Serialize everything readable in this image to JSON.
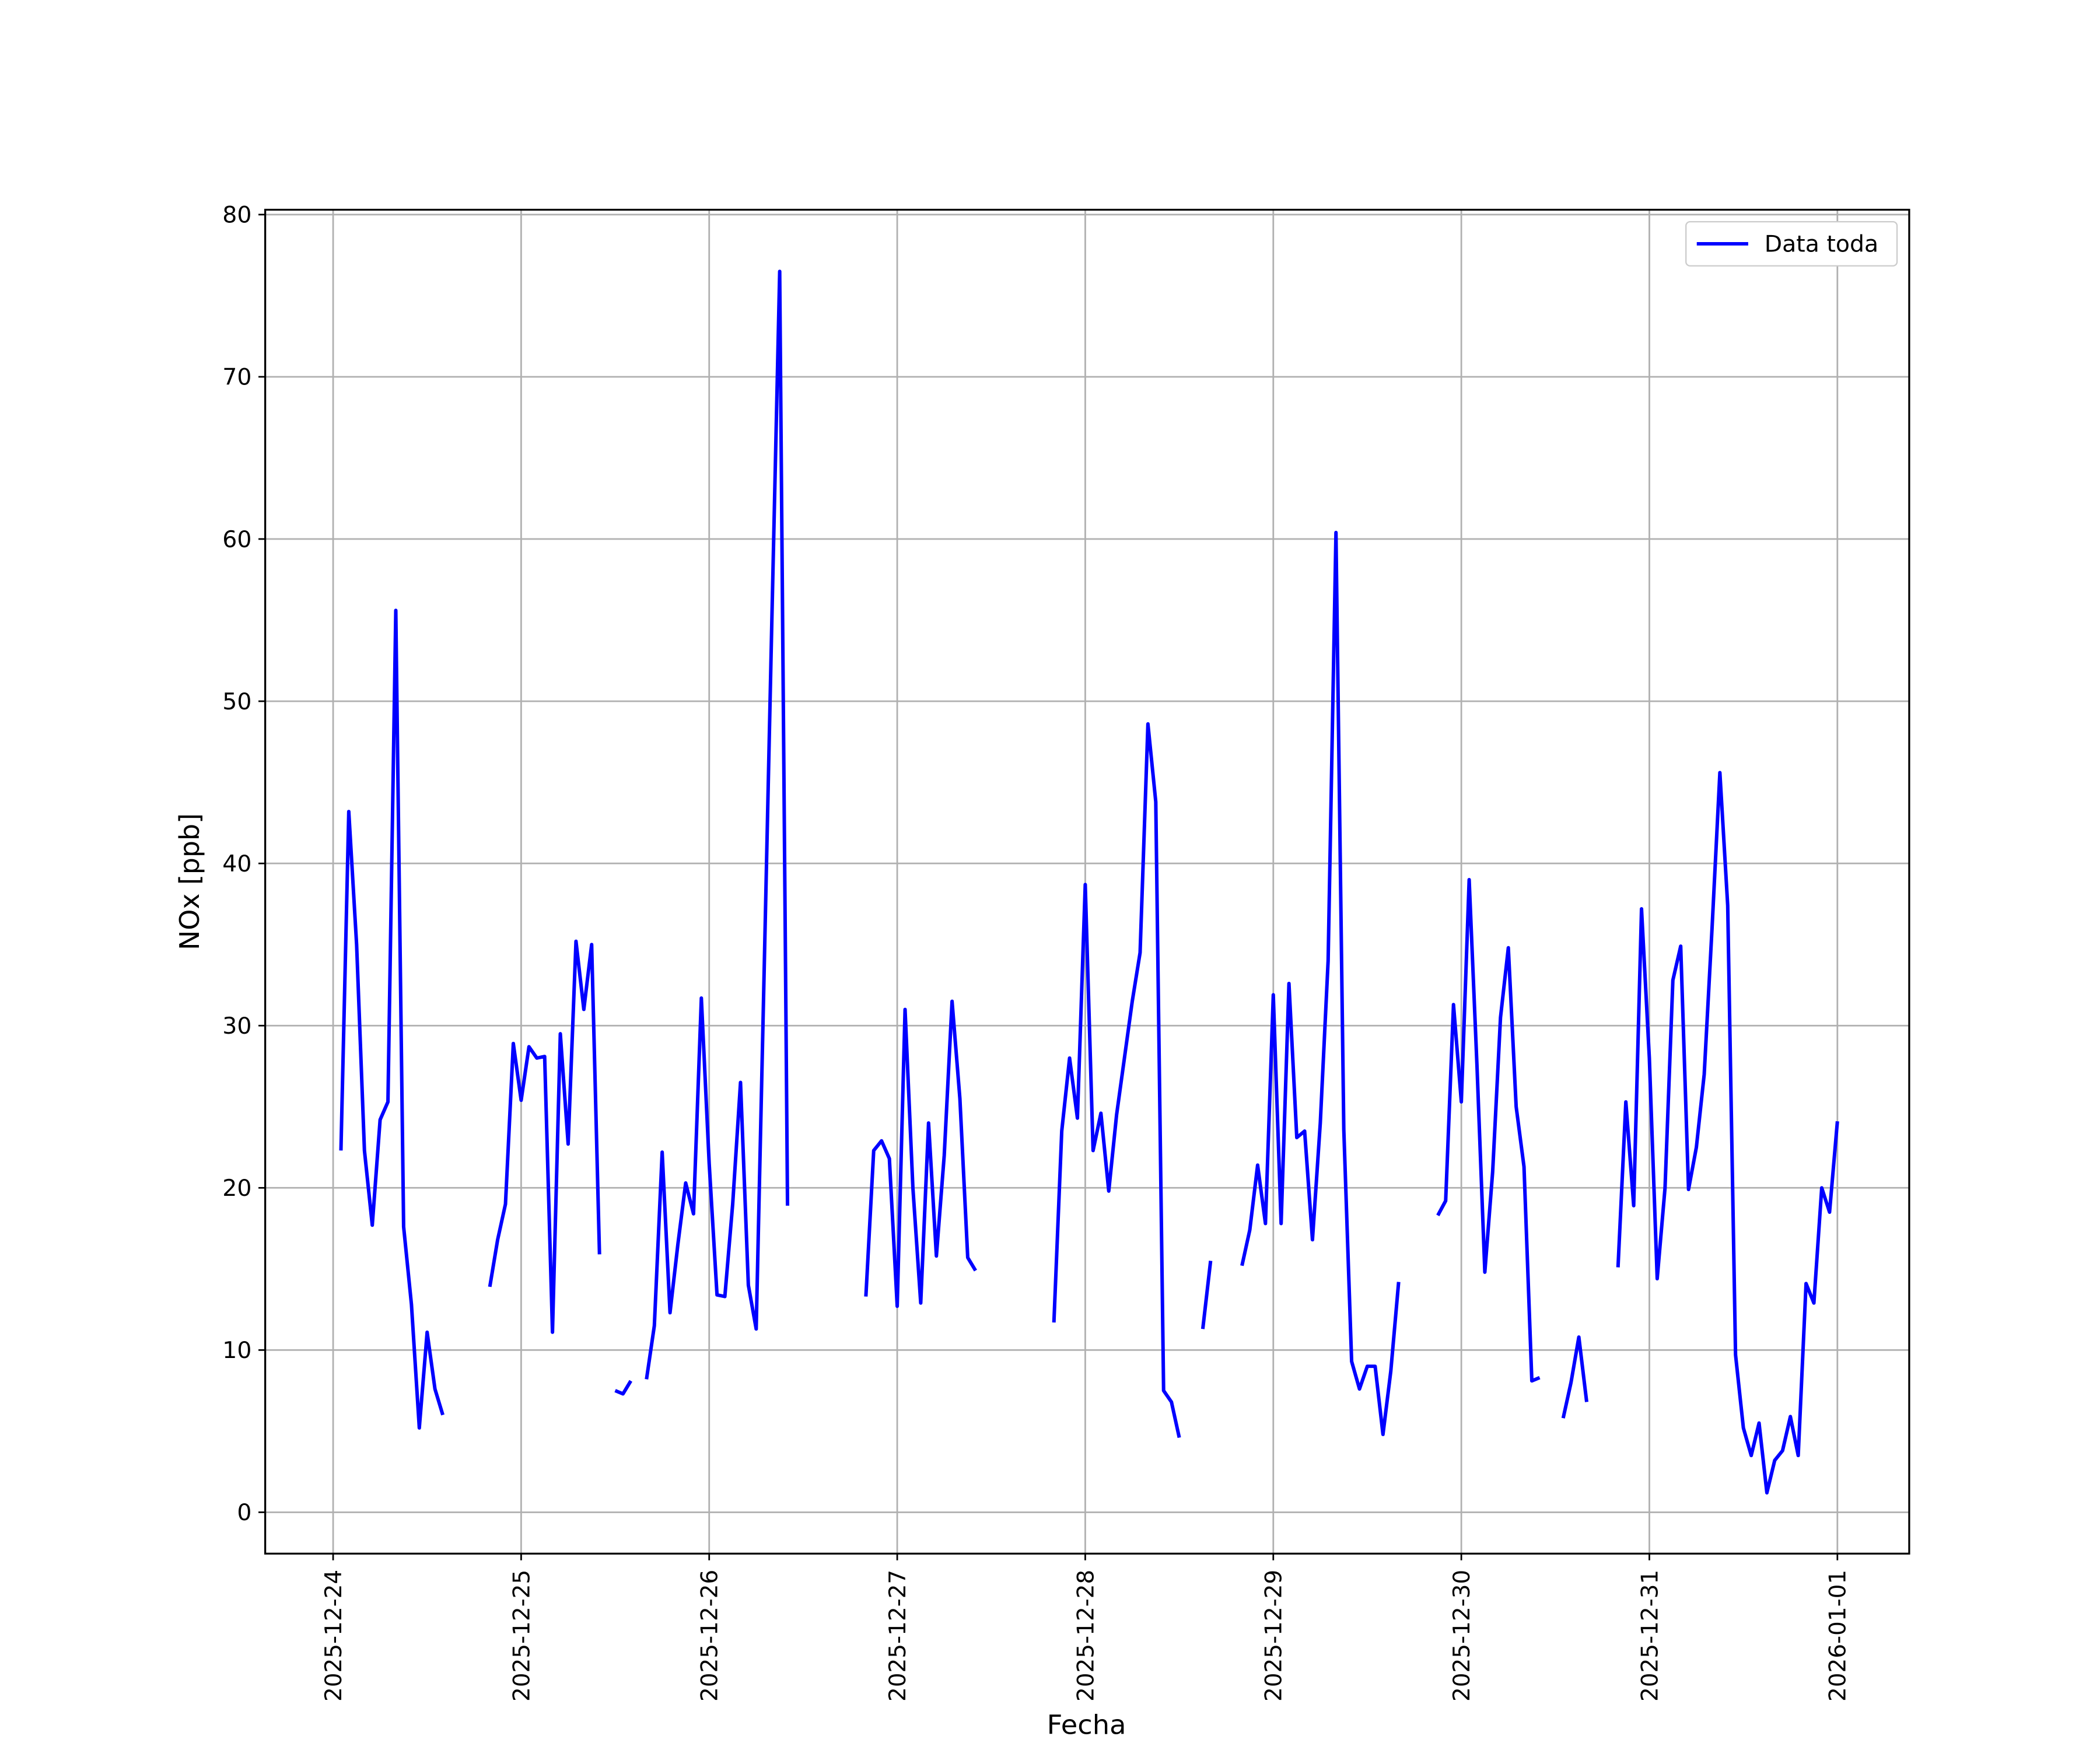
{
  "chart_data": {
    "type": "line",
    "x_label": "Fecha",
    "y_label": "NOx [ppb]",
    "x": [
      "2025-12-24 01:00",
      "2025-12-24 02:00",
      "2025-12-24 03:00",
      "2025-12-24 04:00",
      "2025-12-24 05:00",
      "2025-12-24 06:00",
      "2025-12-24 07:00",
      "2025-12-24 08:00",
      "2025-12-24 09:00",
      "2025-12-24 10:00",
      "2025-12-24 11:00",
      "2025-12-24 12:00",
      "2025-12-24 13:00",
      "2025-12-24 14:00",
      "2025-12-24 15:00",
      "2025-12-24 20:00",
      "2025-12-24 21:00",
      "2025-12-24 22:00",
      "2025-12-24 23:00",
      "2025-12-25 00:00",
      "2025-12-25 01:00",
      "2025-12-25 02:00",
      "2025-12-25 03:00",
      "2025-12-25 04:00",
      "2025-12-25 05:00",
      "2025-12-25 06:00",
      "2025-12-25 07:00",
      "2025-12-25 08:00",
      "2025-12-25 09:00",
      "2025-12-25 10:00",
      "2025-12-25 11:00",
      "2025-12-25 12:00",
      "2025-12-25 13:00",
      "2025-12-25 14:00",
      "2025-12-25 15:00",
      "2025-12-25 16:00",
      "2025-12-25 17:00",
      "2025-12-25 18:00",
      "2025-12-25 19:00",
      "2025-12-25 20:00",
      "2025-12-25 21:00",
      "2025-12-25 22:00",
      "2025-12-25 23:00",
      "2025-12-26 00:00",
      "2025-12-26 01:00",
      "2025-12-26 02:00",
      "2025-12-26 03:00",
      "2025-12-26 04:00",
      "2025-12-26 05:00",
      "2025-12-26 06:00",
      "2025-12-26 07:00",
      "2025-12-26 08:00",
      "2025-12-26 09:00",
      "2025-12-26 10:00",
      "2025-12-26 11:00",
      "2025-12-26 20:00",
      "2025-12-26 21:00",
      "2025-12-26 22:00",
      "2025-12-26 23:00",
      "2025-12-27 00:00",
      "2025-12-27 01:00",
      "2025-12-27 02:00",
      "2025-12-27 03:00",
      "2025-12-27 04:00",
      "2025-12-27 05:00",
      "2025-12-27 06:00",
      "2025-12-27 07:00",
      "2025-12-27 08:00",
      "2025-12-27 09:00",
      "2025-12-27 10:00",
      "2025-12-27 11:00",
      "2025-12-27 20:00",
      "2025-12-27 21:00",
      "2025-12-27 22:00",
      "2025-12-27 23:00",
      "2025-12-28 00:00",
      "2025-12-28 01:00",
      "2025-12-28 02:00",
      "2025-12-28 03:00",
      "2025-12-28 04:00",
      "2025-12-28 05:00",
      "2025-12-28 06:00",
      "2025-12-28 07:00",
      "2025-12-28 08:00",
      "2025-12-28 09:00",
      "2025-12-28 10:00",
      "2025-12-28 11:00",
      "2025-12-28 12:00",
      "2025-12-28 13:00",
      "2025-12-28 15:00",
      "2025-12-28 16:00",
      "2025-12-28 17:00",
      "2025-12-28 20:00",
      "2025-12-28 21:00",
      "2025-12-28 22:00",
      "2025-12-28 23:00",
      "2025-12-29 00:00",
      "2025-12-29 01:00",
      "2025-12-29 02:00",
      "2025-12-29 03:00",
      "2025-12-29 04:00",
      "2025-12-29 05:00",
      "2025-12-29 06:00",
      "2025-12-29 07:00",
      "2025-12-29 08:00",
      "2025-12-29 09:00",
      "2025-12-29 10:00",
      "2025-12-29 11:00",
      "2025-12-29 12:00",
      "2025-12-29 13:00",
      "2025-12-29 14:00",
      "2025-12-29 15:00",
      "2025-12-29 16:00",
      "2025-12-29 17:00",
      "2025-12-29 21:00",
      "2025-12-29 22:00",
      "2025-12-29 23:00",
      "2025-12-30 00:00",
      "2025-12-30 01:00",
      "2025-12-30 02:00",
      "2025-12-30 03:00",
      "2025-12-30 04:00",
      "2025-12-30 05:00",
      "2025-12-30 06:00",
      "2025-12-30 07:00",
      "2025-12-30 08:00",
      "2025-12-30 09:00",
      "2025-12-30 10:00",
      "2025-12-30 11:00",
      "2025-12-30 13:00",
      "2025-12-30 14:00",
      "2025-12-30 15:00",
      "2025-12-30 16:00",
      "2025-12-30 17:00",
      "2025-12-30 20:00",
      "2025-12-30 21:00",
      "2025-12-30 22:00",
      "2025-12-30 23:00",
      "2025-12-31 00:00",
      "2025-12-31 01:00",
      "2025-12-31 02:00",
      "2025-12-31 03:00",
      "2025-12-31 04:00",
      "2025-12-31 05:00",
      "2025-12-31 06:00",
      "2025-12-31 07:00",
      "2025-12-31 08:00",
      "2025-12-31 09:00",
      "2025-12-31 10:00",
      "2025-12-31 11:00",
      "2025-12-31 12:00",
      "2025-12-31 13:00",
      "2025-12-31 14:00",
      "2025-12-31 15:00",
      "2025-12-31 16:00",
      "2025-12-31 17:00",
      "2025-12-31 18:00",
      "2025-12-31 19:00",
      "2025-12-31 20:00",
      "2025-12-31 21:00",
      "2025-12-31 22:00",
      "2025-12-31 23:00",
      "2026-01-01 00:00"
    ],
    "series": [
      {
        "name": "Data toda",
        "color": "#0000ff",
        "values": [
          22.3,
          43.2,
          35,
          22.3,
          17.7,
          24.2,
          25.3,
          55.6,
          17.6,
          12.8,
          5.2,
          11.1,
          7.6,
          6.0,
          null,
          13.9,
          16.8,
          19,
          28.9,
          25.4,
          28.7,
          28,
          28.1,
          11.1,
          29.5,
          22.7,
          35.2,
          31,
          35,
          15.9,
          null,
          7.5,
          7.3,
          8.1,
          null,
          8.2,
          11.5,
          22.2,
          12.3,
          16.5,
          20.3,
          18.4,
          31.7,
          21.5,
          13.4,
          13.3,
          19,
          26.5,
          14,
          11.3,
          33,
          55,
          76.5,
          18.9,
          null,
          13.3,
          22.3,
          22.9,
          21.8,
          12.7,
          31,
          20,
          12.9,
          24,
          15.8,
          22,
          31.5,
          25.5,
          15.7,
          14.9,
          null,
          11.7,
          23.5,
          28,
          24.3,
          38.7,
          22.3,
          24.6,
          19.8,
          24.5,
          28,
          31.5,
          34.5,
          48.6,
          43.8,
          7.5,
          6.8,
          4.6,
          null,
          11.3,
          15.5,
          null,
          15.2,
          17.4,
          21.4,
          17.8,
          31.9,
          17.8,
          32.6,
          23.1,
          23.5,
          16.8,
          24,
          34,
          60.4,
          23.6,
          9.3,
          7.6,
          9,
          9,
          4.8,
          8.7,
          14.2,
          null,
          18.3,
          19.2,
          31.3,
          25.3,
          39,
          27.5,
          14.8,
          21,
          30.5,
          34.8,
          25,
          21.3,
          8.1,
          8.3,
          null,
          5.8,
          8,
          10.8,
          6.8,
          null,
          15.1,
          25.3,
          18.9,
          37.2,
          28,
          14.4,
          20,
          32.8,
          34.9,
          19.9,
          22.5,
          27,
          36,
          45.6,
          37.4,
          9.7,
          5.2,
          3.5,
          5.5,
          1.2,
          3.2,
          3.8,
          5.9,
          3.5,
          14.1,
          12.9,
          20,
          18.5,
          24.1
        ]
      }
    ],
    "xlim": [
      "2025-12-23 15:20",
      "2026-01-01 09:10"
    ],
    "xticks": [
      "2025-12-24",
      "2025-12-25",
      "2025-12-26",
      "2025-12-27",
      "2025-12-28",
      "2025-12-29",
      "2025-12-30",
      "2025-12-31",
      "2026-01-01"
    ],
    "ylim": [
      -2.55,
      80.3
    ],
    "yticks": [
      0,
      10,
      20,
      30,
      40,
      50,
      60,
      70,
      80
    ],
    "grid": true,
    "legend": "upper right"
  }
}
